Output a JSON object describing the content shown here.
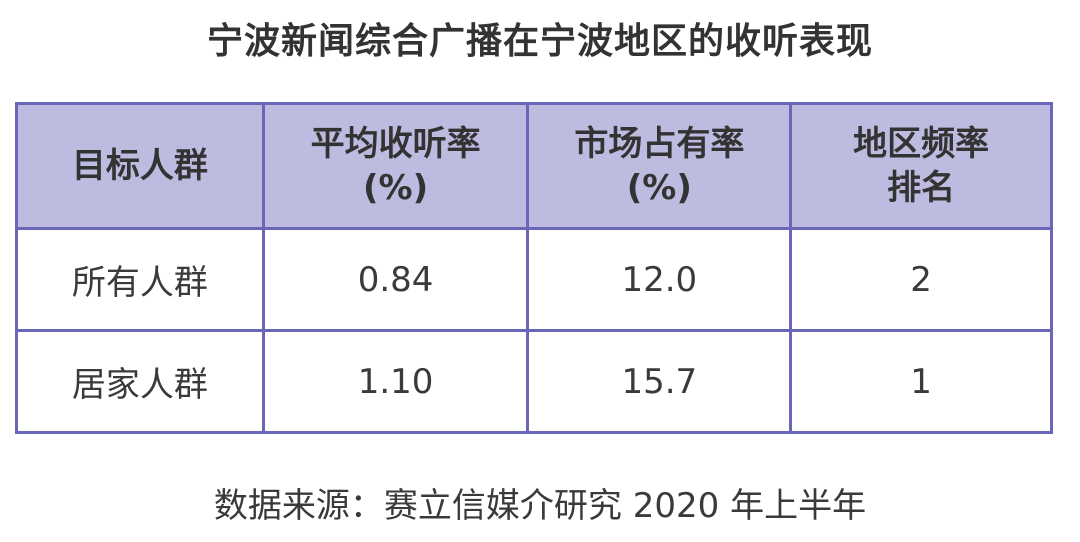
{
  "title": "宁波新闻综合广播在宁波地区的收听表现",
  "table": {
    "headers": [
      {
        "line1": "目标人群",
        "line2": ""
      },
      {
        "line1": "平均收听率",
        "line2": "(%)"
      },
      {
        "line1": "市场占有率",
        "line2": "(%)"
      },
      {
        "line1": "地区频率",
        "line2": "排名"
      }
    ],
    "rows": [
      {
        "group": "所有人群",
        "avg_rating": "0.84",
        "market_share": "12.0",
        "rank": "2"
      },
      {
        "group": "居家人群",
        "avg_rating": "1.10",
        "market_share": "15.7",
        "rank": "1"
      }
    ]
  },
  "source": "数据来源：赛立信媒介研究 2020 年上半年",
  "colors": {
    "header_bg": "#bdbbe0",
    "border": "#6a66b8"
  },
  "chart_data": {
    "type": "table",
    "title": "宁波新闻综合广播在宁波地区的收听表现",
    "columns": [
      "目标人群",
      "平均收听率 (%)",
      "市场占有率 (%)",
      "地区频率 排名"
    ],
    "rows": [
      [
        "所有人群",
        0.84,
        12.0,
        2
      ],
      [
        "居家人群",
        1.1,
        15.7,
        1
      ]
    ]
  }
}
